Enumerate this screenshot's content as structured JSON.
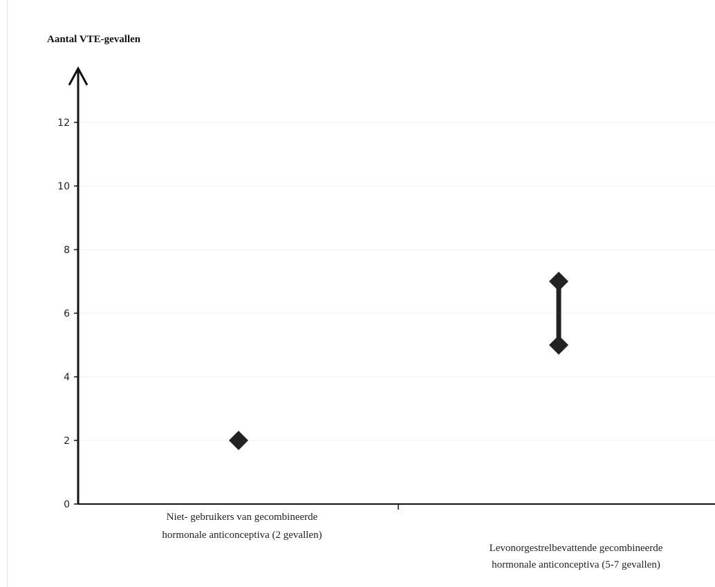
{
  "chart_data": {
    "type": "scatter",
    "title": "",
    "ylabel": "Aantal VTE-gevallen",
    "xlabel": "",
    "ylim": [
      0,
      12
    ],
    "yticks": [
      0,
      2,
      4,
      6,
      8,
      10,
      12
    ],
    "grid": true,
    "categories": [
      [
        "Niet- gebruikers van gecombineerde",
        "hormonale anticonceptiva (2 gevallen)"
      ],
      [
        "Levonorgestrelbevattende gecombineerde",
        "hormonale anticonceptiva (5-7 gevallen)"
      ]
    ],
    "series": [
      {
        "values": [
          {
            "low": 2,
            "high": 2
          },
          {
            "low": 5,
            "high": 7
          }
        ]
      }
    ],
    "colors": {
      "marker": "#222222",
      "axis": "#111111",
      "grid": "#efefef"
    }
  }
}
